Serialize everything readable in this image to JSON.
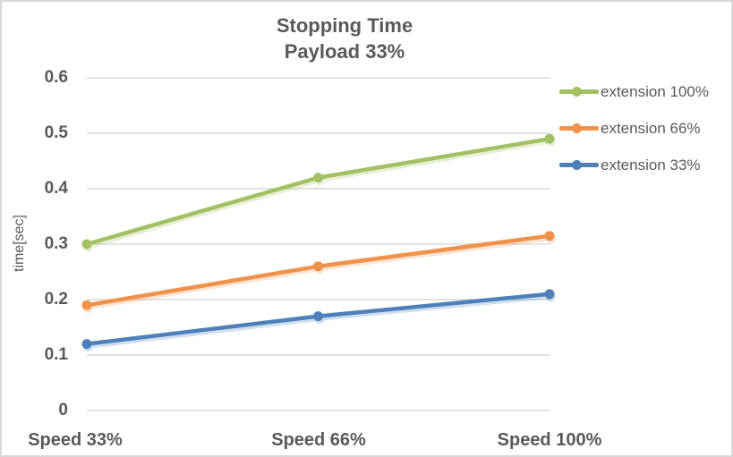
{
  "chart_data": {
    "type": "line",
    "title": "Stopping Time Payload 33%",
    "title_lines": [
      "Stopping Time",
      "Payload 33%"
    ],
    "categories": [
      "Speed 33%",
      "Speed 66%",
      "Speed 100%"
    ],
    "series": [
      {
        "name": "extension 100%",
        "color": "#A3C163",
        "values": [
          0.3,
          0.42,
          0.49
        ]
      },
      {
        "name": "extension 66%",
        "color": "#F0924A",
        "values": [
          0.19,
          0.26,
          0.315
        ]
      },
      {
        "name": "extension 33%",
        "color": "#4E81BC",
        "values": [
          0.12,
          0.17,
          0.21
        ]
      }
    ],
    "xlabel": "",
    "ylabel": "time[sec]",
    "ylim": [
      0,
      0.6
    ],
    "ytick_labels": [
      "0.6",
      "0.5",
      "0.4",
      "0.3",
      "0.2",
      "0.1",
      "0"
    ],
    "grid": true,
    "legend_position": "right-top",
    "colors": {
      "text": "#595959",
      "gridline": "#D9D9D9",
      "background": "#FFFFFF",
      "border": "#D8D8D8"
    }
  }
}
